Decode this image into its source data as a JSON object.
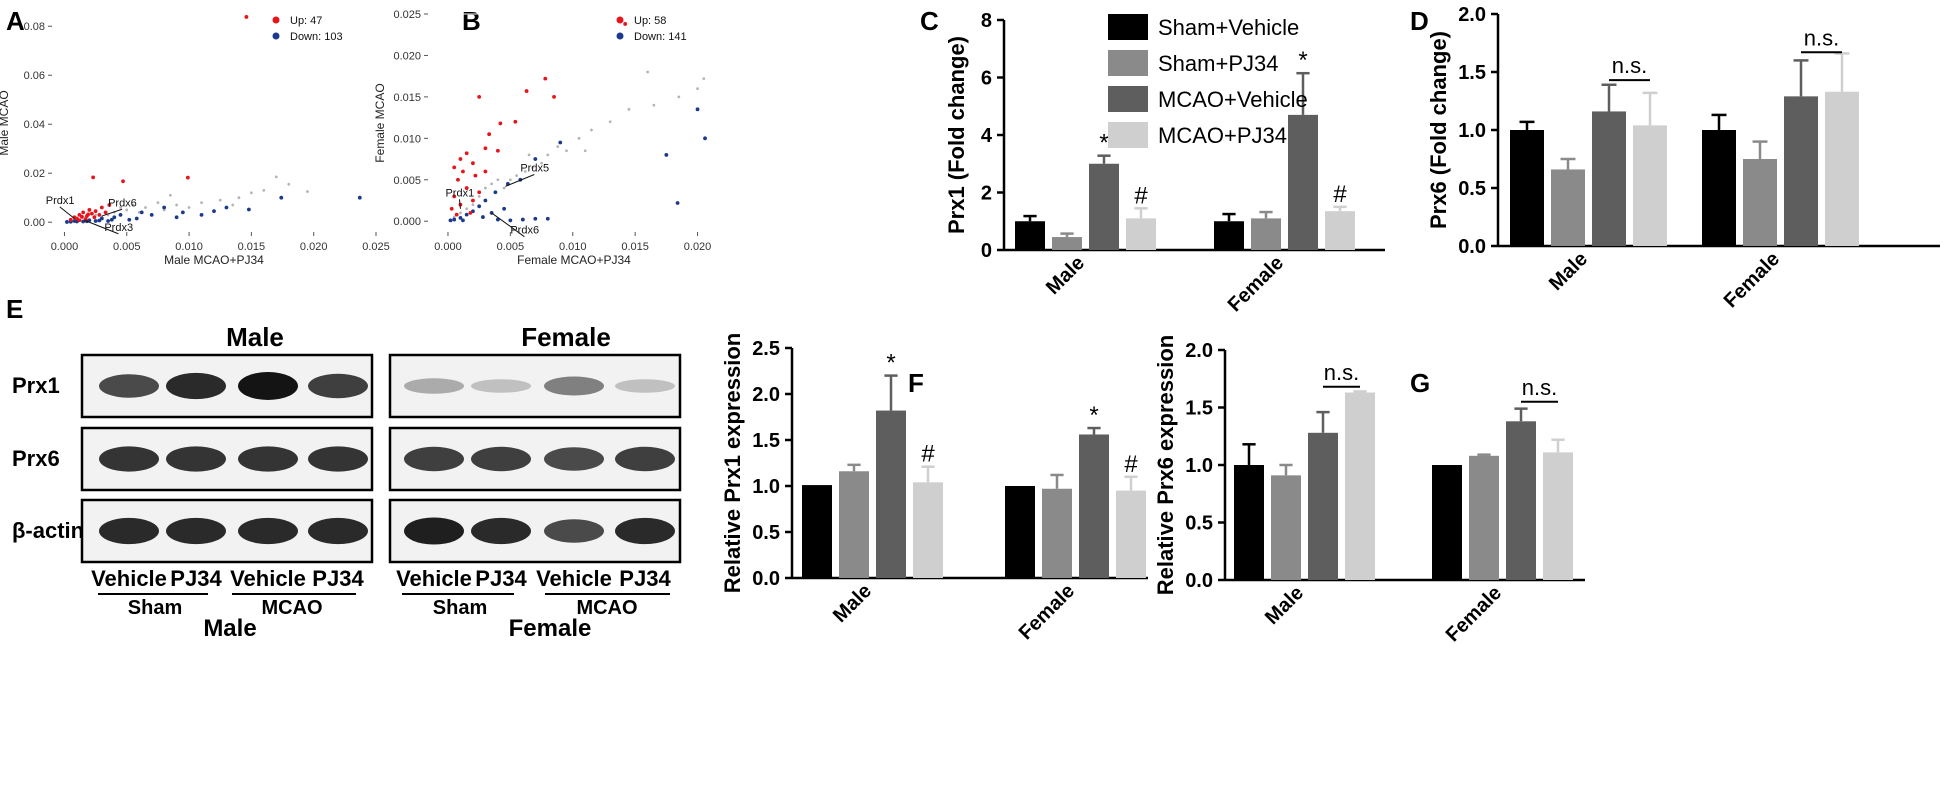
{
  "colors": {
    "sham_vehicle": "#000000",
    "sham_pj34": "#8a8a8a",
    "mcao_vehicle": "#5e5e5e",
    "mcao_pj34": "#cfcfcf",
    "up": "#e8141b",
    "down": "#1b3a8c",
    "neutral": "#b5b5b5"
  },
  "panels": {
    "A": "A",
    "B": "B",
    "C": "C",
    "D": "D",
    "E": "E",
    "F": "F",
    "G": "G"
  },
  "legend": {
    "items": [
      "Sham+Vehicle",
      "Sham+PJ34",
      "MCAO+Vehicle",
      "MCAO+PJ34"
    ]
  },
  "chart_data": [
    {
      "id": "A",
      "type": "scatter",
      "xlabel": "Male MCAO+PJ34",
      "ylabel": "Male MCAO",
      "xlim": [
        -0.001,
        0.025
      ],
      "ylim": [
        -0.004,
        0.085
      ],
      "xticks": [
        0.0,
        0.005,
        0.01,
        0.015,
        0.02,
        0.025
      ],
      "xtick_labels": [
        "0.000",
        "0.005",
        "0.010",
        "0.015",
        "0.020",
        "0.025"
      ],
      "yticks": [
        0.0,
        0.02,
        0.04,
        0.06,
        0.08
      ],
      "ytick_labels": [
        "0.00",
        "0.02",
        "0.04",
        "0.06",
        "0.08"
      ],
      "legend": [
        "Up: 47",
        "Down: 103"
      ],
      "annotations": [
        {
          "label": "Prdx1",
          "x": 0.0008,
          "y": 0.0015,
          "tx": -0.0015,
          "ty": 0.0075
        },
        {
          "label": "Prdx6",
          "x": 0.003,
          "y": 0.0025,
          "tx": 0.0035,
          "ty": 0.0065
        },
        {
          "label": "Prdx3",
          "x": 0.0016,
          "y": 0.0008,
          "tx": 0.0032,
          "ty": -0.0035
        }
      ],
      "up": [
        [
          0.0146,
          0.0838
        ],
        [
          0.0023,
          0.0183
        ],
        [
          0.0047,
          0.0167
        ],
        [
          0.0099,
          0.0182
        ],
        [
          0.0008,
          0.002
        ],
        [
          0.0012,
          0.003
        ],
        [
          0.0015,
          0.004
        ],
        [
          0.0018,
          0.0025
        ],
        [
          0.002,
          0.005
        ],
        [
          0.0022,
          0.0035
        ],
        [
          0.0025,
          0.0045
        ],
        [
          0.0028,
          0.003
        ],
        [
          0.001,
          0.0015
        ],
        [
          0.0014,
          0.0022
        ],
        [
          0.0005,
          0.001
        ],
        [
          0.003,
          0.006
        ],
        [
          0.0033,
          0.004
        ],
        [
          0.0017,
          0.0012
        ],
        [
          0.0024,
          0.002
        ],
        [
          0.0036,
          0.007
        ],
        [
          0.0012,
          0.0008
        ],
        [
          0.0019,
          0.0032
        ]
      ],
      "down": [
        [
          0.0237,
          0.01
        ],
        [
          0.0174,
          0.01
        ],
        [
          0.0148,
          0.0052
        ],
        [
          0.013,
          0.006
        ],
        [
          0.0095,
          0.004
        ],
        [
          0.009,
          0.002
        ],
        [
          0.008,
          0.006
        ],
        [
          0.007,
          0.003
        ],
        [
          0.0062,
          0.004
        ],
        [
          0.0052,
          0.001
        ],
        [
          0.0045,
          0.003
        ],
        [
          0.004,
          0.002
        ],
        [
          0.0035,
          0.0005
        ],
        [
          0.003,
          0.0015
        ],
        [
          0.0025,
          0.0005
        ],
        [
          0.002,
          0.0008
        ],
        [
          0.0015,
          0.0003
        ],
        [
          0.001,
          0.0003
        ],
        [
          0.0005,
          0.0002
        ],
        [
          0.0002,
          0.0001
        ],
        [
          0.0008,
          0.0005
        ],
        [
          0.0018,
          0.0004
        ],
        [
          0.0028,
          0.0007
        ],
        [
          0.0038,
          0.001
        ],
        [
          0.0058,
          0.0015
        ],
        [
          0.011,
          0.003
        ],
        [
          0.012,
          0.0045
        ]
      ],
      "neutral": [
        [
          0.017,
          0.0185
        ],
        [
          0.018,
          0.0155
        ],
        [
          0.016,
          0.013
        ],
        [
          0.015,
          0.012
        ],
        [
          0.014,
          0.01
        ],
        [
          0.0125,
          0.009
        ],
        [
          0.011,
          0.008
        ],
        [
          0.01,
          0.006
        ],
        [
          0.009,
          0.007
        ],
        [
          0.008,
          0.005
        ],
        [
          0.0075,
          0.008
        ],
        [
          0.0065,
          0.006
        ],
        [
          0.006,
          0.004
        ],
        [
          0.0055,
          0.007
        ],
        [
          0.005,
          0.005
        ],
        [
          0.0045,
          0.006
        ],
        [
          0.004,
          0.004
        ],
        [
          0.0035,
          0.003
        ],
        [
          0.003,
          0.002
        ],
        [
          0.0025,
          0.003
        ],
        [
          0.002,
          0.001
        ],
        [
          0.0015,
          0.002
        ],
        [
          0.001,
          0.001
        ],
        [
          0.0005,
          0.0005
        ],
        [
          0.0085,
          0.011
        ],
        [
          0.0195,
          0.0125
        ],
        [
          0.0135,
          0.007
        ]
      ]
    },
    {
      "id": "B",
      "type": "scatter",
      "xlabel": "Female MCAO+PJ34",
      "ylabel": "Female MCAO",
      "xlim": [
        -0.0016,
        0.0218
      ],
      "ylim": [
        -0.0013,
        0.025
      ],
      "xticks": [
        0.0,
        0.005,
        0.01,
        0.015,
        0.02
      ],
      "xtick_labels": [
        "0.000",
        "0.005",
        "0.010",
        "0.015",
        "0.020"
      ],
      "yticks": [
        0.0,
        0.005,
        0.01,
        0.015,
        0.02,
        0.025
      ],
      "ytick_labels": [
        "0.000",
        "0.005",
        "0.010",
        "0.015",
        "0.020",
        "0.025"
      ],
      "legend": [
        "Up: 58",
        "Down: 141"
      ],
      "annotations": [
        {
          "label": "Prdx5",
          "x": 0.0046,
          "y": 0.0042,
          "tx": 0.0058,
          "ty": 0.006
        },
        {
          "label": "Prdx1",
          "x": 0.001,
          "y": 0.0015,
          "tx": -0.0002,
          "ty": 0.003
        },
        {
          "label": "Prdx6",
          "x": 0.0035,
          "y": 0.001,
          "tx": 0.005,
          "ty": -0.0015
        }
      ],
      "up": [
        [
          0.0142,
          0.0238
        ],
        [
          0.0078,
          0.0172
        ],
        [
          0.0085,
          0.015
        ],
        [
          0.0063,
          0.0157
        ],
        [
          0.0025,
          0.015
        ],
        [
          0.0054,
          0.012
        ],
        [
          0.0042,
          0.0118
        ],
        [
          0.0033,
          0.0105
        ],
        [
          0.003,
          0.0088
        ],
        [
          0.004,
          0.0085
        ],
        [
          0.0015,
          0.0082
        ],
        [
          0.001,
          0.0075
        ],
        [
          0.0005,
          0.0065
        ],
        [
          0.002,
          0.007
        ],
        [
          0.0012,
          0.006
        ],
        [
          0.0008,
          0.005
        ],
        [
          0.0015,
          0.004
        ],
        [
          0.0005,
          0.003
        ],
        [
          0.001,
          0.002
        ],
        [
          0.002,
          0.0025
        ],
        [
          0.0025,
          0.0035
        ],
        [
          0.0003,
          0.0015
        ],
        [
          0.0018,
          0.001
        ],
        [
          0.0007,
          0.0008
        ],
        [
          0.003,
          0.006
        ],
        [
          0.0022,
          0.0055
        ]
      ],
      "down": [
        [
          0.02,
          0.0135
        ],
        [
          0.0206,
          0.01
        ],
        [
          0.0175,
          0.008
        ],
        [
          0.0184,
          0.0022
        ],
        [
          0.009,
          0.0095
        ],
        [
          0.007,
          0.0075
        ],
        [
          0.0058,
          0.005
        ],
        [
          0.0048,
          0.0045
        ],
        [
          0.0038,
          0.0035
        ],
        [
          0.003,
          0.0025
        ],
        [
          0.0025,
          0.0018
        ],
        [
          0.002,
          0.0012
        ],
        [
          0.0015,
          0.0008
        ],
        [
          0.001,
          0.0004
        ],
        [
          0.0005,
          0.0002
        ],
        [
          0.0002,
          0.0001
        ],
        [
          0.004,
          0.0002
        ],
        [
          0.005,
          0.0001
        ],
        [
          0.006,
          0.0002
        ],
        [
          0.007,
          0.0003
        ],
        [
          0.008,
          0.0003
        ],
        [
          0.0035,
          0.001
        ],
        [
          0.0028,
          0.0005
        ],
        [
          0.0045,
          0.0015
        ],
        [
          0.0012,
          0.0001
        ]
      ],
      "neutral": [
        [
          0.0205,
          0.0172
        ],
        [
          0.02,
          0.016
        ],
        [
          0.0185,
          0.015
        ],
        [
          0.0165,
          0.014
        ],
        [
          0.0145,
          0.0135
        ],
        [
          0.013,
          0.012
        ],
        [
          0.0115,
          0.011
        ],
        [
          0.0105,
          0.01
        ],
        [
          0.0095,
          0.0085
        ],
        [
          0.0088,
          0.009
        ],
        [
          0.008,
          0.008
        ],
        [
          0.0075,
          0.007
        ],
        [
          0.0068,
          0.0065
        ],
        [
          0.0062,
          0.006
        ],
        [
          0.0055,
          0.0055
        ],
        [
          0.005,
          0.005
        ],
        [
          0.0045,
          0.004
        ],
        [
          0.004,
          0.005
        ],
        [
          0.0035,
          0.0045
        ],
        [
          0.003,
          0.004
        ],
        [
          0.0025,
          0.003
        ],
        [
          0.002,
          0.002
        ],
        [
          0.0015,
          0.0015
        ],
        [
          0.001,
          0.001
        ],
        [
          0.0005,
          0.0005
        ],
        [
          0.016,
          0.018
        ],
        [
          0.011,
          0.0085
        ],
        [
          0.0065,
          0.008
        ]
      ]
    },
    {
      "id": "C",
      "type": "bar",
      "ylabel": "Prx1 (Fold change)",
      "categories": [
        "Male",
        "Female"
      ],
      "ylim": [
        0,
        8
      ],
      "yticks": [
        0,
        2,
        4,
        6,
        8
      ],
      "ytick_labels": [
        "0",
        "2",
        "4",
        "6",
        "8"
      ],
      "series": [
        {
          "name": "Sham+Vehicle",
          "values": [
            1.0,
            1.0
          ],
          "errors": [
            0.18,
            0.25
          ]
        },
        {
          "name": "Sham+PJ34",
          "values": [
            0.45,
            1.1
          ],
          "errors": [
            0.12,
            0.22
          ]
        },
        {
          "name": "MCAO+Vehicle",
          "values": [
            3.0,
            4.7
          ],
          "errors": [
            0.28,
            1.45
          ]
        },
        {
          "name": "MCAO+PJ34",
          "values": [
            1.1,
            1.35
          ],
          "errors": [
            0.35,
            0.15
          ]
        }
      ],
      "sig": [
        {
          "cat": 0,
          "series": 2,
          "label": "*"
        },
        {
          "cat": 0,
          "series": 3,
          "label": "#"
        },
        {
          "cat": 1,
          "series": 2,
          "label": "*"
        },
        {
          "cat": 1,
          "series": 3,
          "label": "#"
        }
      ],
      "ns": []
    },
    {
      "id": "D",
      "type": "bar",
      "ylabel": "Prx6 (Fold change)",
      "categories": [
        "Male",
        "Female"
      ],
      "ylim": [
        0,
        2.0
      ],
      "yticks": [
        0.0,
        0.5,
        1.0,
        1.5,
        2.0
      ],
      "ytick_labels": [
        "0.0",
        "0.5",
        "1.0",
        "1.5",
        "2.0"
      ],
      "series": [
        {
          "name": "Sham+Vehicle",
          "values": [
            1.0,
            1.0
          ],
          "errors": [
            0.07,
            0.13
          ]
        },
        {
          "name": "Sham+PJ34",
          "values": [
            0.66,
            0.75
          ],
          "errors": [
            0.09,
            0.15
          ]
        },
        {
          "name": "MCAO+Vehicle",
          "values": [
            1.16,
            1.29
          ],
          "errors": [
            0.23,
            0.31
          ]
        },
        {
          "name": "MCAO+PJ34",
          "values": [
            1.04,
            1.33
          ],
          "errors": [
            0.28,
            0.33
          ]
        }
      ],
      "sig": [],
      "ns": [
        {
          "cat": 0,
          "label": "n.s.",
          "y": 1.43
        },
        {
          "cat": 1,
          "label": "n.s.",
          "y": 1.67
        }
      ]
    },
    {
      "id": "F",
      "type": "bar",
      "ylabel": "Relative Prx1 expression",
      "categories": [
        "Male",
        "Female"
      ],
      "ylim": [
        0,
        2.5
      ],
      "yticks": [
        0.0,
        0.5,
        1.0,
        1.5,
        2.0,
        2.5
      ],
      "ytick_labels": [
        "0.0",
        "0.5",
        "1.0",
        "1.5",
        "2.0",
        "2.5"
      ],
      "series": [
        {
          "name": "Sham+Vehicle",
          "values": [
            1.01,
            1.0
          ],
          "errors": [
            0.0,
            0.0
          ]
        },
        {
          "name": "Sham+PJ34",
          "values": [
            1.16,
            0.97
          ],
          "errors": [
            0.07,
            0.15
          ]
        },
        {
          "name": "MCAO+Vehicle",
          "values": [
            1.82,
            1.56
          ],
          "errors": [
            0.38,
            0.07
          ]
        },
        {
          "name": "MCAO+PJ34",
          "values": [
            1.04,
            0.95
          ],
          "errors": [
            0.17,
            0.15
          ]
        }
      ],
      "sig": [
        {
          "cat": 0,
          "series": 2,
          "label": "*"
        },
        {
          "cat": 0,
          "series": 3,
          "label": "#"
        },
        {
          "cat": 1,
          "series": 2,
          "label": "*"
        },
        {
          "cat": 1,
          "series": 3,
          "label": "#"
        }
      ],
      "ns": []
    },
    {
      "id": "G",
      "type": "bar",
      "ylabel": "Relative Prx6 expression",
      "categories": [
        "Male",
        "Female"
      ],
      "ylim": [
        0,
        2.0
      ],
      "yticks": [
        0.0,
        0.5,
        1.0,
        1.5,
        2.0
      ],
      "ytick_labels": [
        "0.0",
        "0.5",
        "1.0",
        "1.5",
        "2.0"
      ],
      "series": [
        {
          "name": "Sham+Vehicle",
          "values": [
            1.0,
            1.0
          ],
          "errors": [
            0.18,
            0.0
          ]
        },
        {
          "name": "Sham+PJ34",
          "values": [
            0.91,
            1.08
          ],
          "errors": [
            0.09,
            0.01
          ]
        },
        {
          "name": "MCAO+Vehicle",
          "values": [
            1.28,
            1.38
          ],
          "errors": [
            0.18,
            0.11
          ]
        },
        {
          "name": "MCAO+PJ34",
          "values": [
            1.63,
            1.11
          ],
          "errors": [
            0.01,
            0.11
          ]
        }
      ],
      "sig": [],
      "ns": [
        {
          "cat": 0,
          "label": "n.s.",
          "y": 1.68
        },
        {
          "cat": 1,
          "label": "n.s.",
          "y": 1.55
        }
      ]
    }
  ],
  "western": {
    "male_title": "Male",
    "female_title": "Female",
    "rows": [
      "Prx1",
      "Prx6",
      "β-actin"
    ],
    "lanes": [
      "Vehicle",
      "PJ34",
      "Vehicle",
      "PJ34"
    ],
    "groups": [
      "Sham",
      "MCAO"
    ],
    "male_label": "Male",
    "female_label": "Female",
    "band_intensity": {
      "male": [
        [
          0.75,
          0.9,
          1.0,
          0.8
        ],
        [
          0.85,
          0.85,
          0.85,
          0.85
        ],
        [
          0.9,
          0.9,
          0.9,
          0.9
        ]
      ],
      "female": [
        [
          0.3,
          0.2,
          0.5,
          0.2
        ],
        [
          0.8,
          0.8,
          0.75,
          0.8
        ],
        [
          0.95,
          0.9,
          0.75,
          0.9
        ]
      ]
    }
  }
}
